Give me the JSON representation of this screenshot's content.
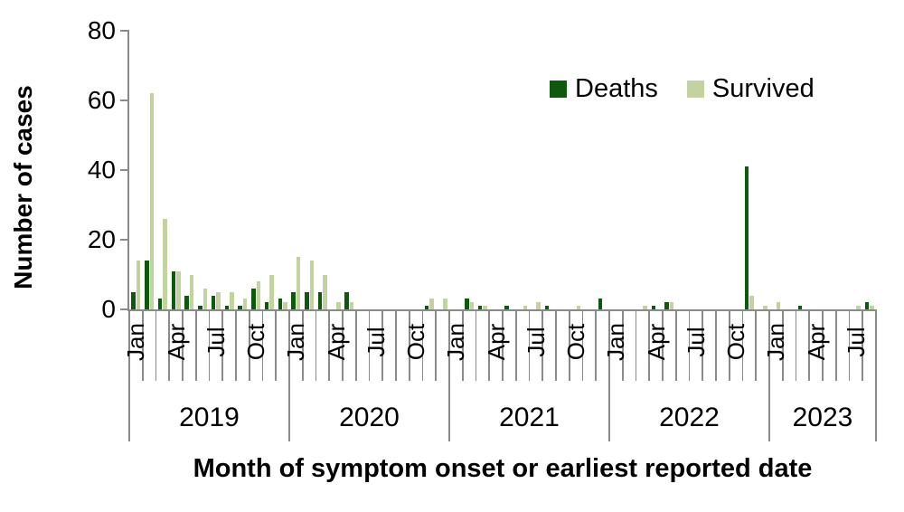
{
  "chart_data": {
    "type": "bar",
    "title": "",
    "ylabel": "Number of cases",
    "xlabel": "Month of symptom onset or earliest reported date",
    "ylim": [
      0,
      80
    ],
    "yticks": [
      "0",
      "20",
      "40",
      "60",
      "80"
    ],
    "grid": "off",
    "legend_position": "top-right",
    "colors": {
      "deaths": "#0d5a0d",
      "survived": "#c2d3a0",
      "axis": "#8a8a8a",
      "text": "#000000"
    },
    "x_axis": {
      "tick_label_months": [
        "Jan",
        "Apr",
        "Jul",
        "Oct"
      ],
      "tick_label_month_indices": [
        0,
        3,
        6,
        9
      ],
      "years": [
        {
          "label": "2019",
          "n_months": 12
        },
        {
          "label": "2020",
          "n_months": 12
        },
        {
          "label": "2021",
          "n_months": 12
        },
        {
          "label": "2022",
          "n_months": 12
        },
        {
          "label": "2023",
          "n_months": 8
        }
      ]
    },
    "categories": [
      "Jan 2019",
      "Feb 2019",
      "Mar 2019",
      "Apr 2019",
      "May 2019",
      "Jun 2019",
      "Jul 2019",
      "Aug 2019",
      "Sep 2019",
      "Oct 2019",
      "Nov 2019",
      "Dec 2019",
      "Jan 2020",
      "Feb 2020",
      "Mar 2020",
      "Apr 2020",
      "May 2020",
      "Jun 2020",
      "Jul 2020",
      "Aug 2020",
      "Sep 2020",
      "Oct 2020",
      "Nov 2020",
      "Dec 2020",
      "Jan 2021",
      "Feb 2021",
      "Mar 2021",
      "Apr 2021",
      "May 2021",
      "Jun 2021",
      "Jul 2021",
      "Aug 2021",
      "Sep 2021",
      "Oct 2021",
      "Nov 2021",
      "Dec 2021",
      "Jan 2022",
      "Feb 2022",
      "Mar 2022",
      "Apr 2022",
      "May 2022",
      "Jun 2022",
      "Jul 2022",
      "Aug 2022",
      "Sep 2022",
      "Oct 2022",
      "Nov 2022",
      "Dec 2022",
      "Jan 2023",
      "Feb 2023",
      "Mar 2023",
      "Apr 2023",
      "May 2023",
      "Jun 2023",
      "Jul 2023",
      "Aug 2023"
    ],
    "series": [
      {
        "name": "Deaths",
        "values": [
          5,
          14,
          3,
          11,
          4,
          1,
          4,
          1,
          1,
          6,
          2,
          3,
          5,
          5,
          5,
          0,
          5,
          0,
          0,
          0,
          0,
          0,
          1,
          0,
          0,
          3,
          1,
          0,
          1,
          0,
          0,
          1,
          0,
          0,
          0,
          3,
          0,
          0,
          0,
          1,
          2,
          0,
          0,
          0,
          0,
          0,
          41,
          0,
          0,
          0,
          1,
          0,
          0,
          0,
          0,
          2
        ]
      },
      {
        "name": "Survived",
        "values": [
          14,
          62,
          26,
          11,
          10,
          6,
          5,
          5,
          3,
          8,
          10,
          2,
          15,
          14,
          10,
          2,
          2,
          0,
          0,
          0,
          0,
          0,
          3,
          3,
          0,
          2,
          1,
          0,
          0,
          1,
          2,
          0,
          0,
          1,
          0,
          0,
          0,
          0,
          1,
          0,
          2,
          0,
          0,
          0,
          0,
          0,
          4,
          1,
          2,
          0,
          0,
          0,
          0,
          0,
          1,
          1
        ]
      }
    ]
  }
}
